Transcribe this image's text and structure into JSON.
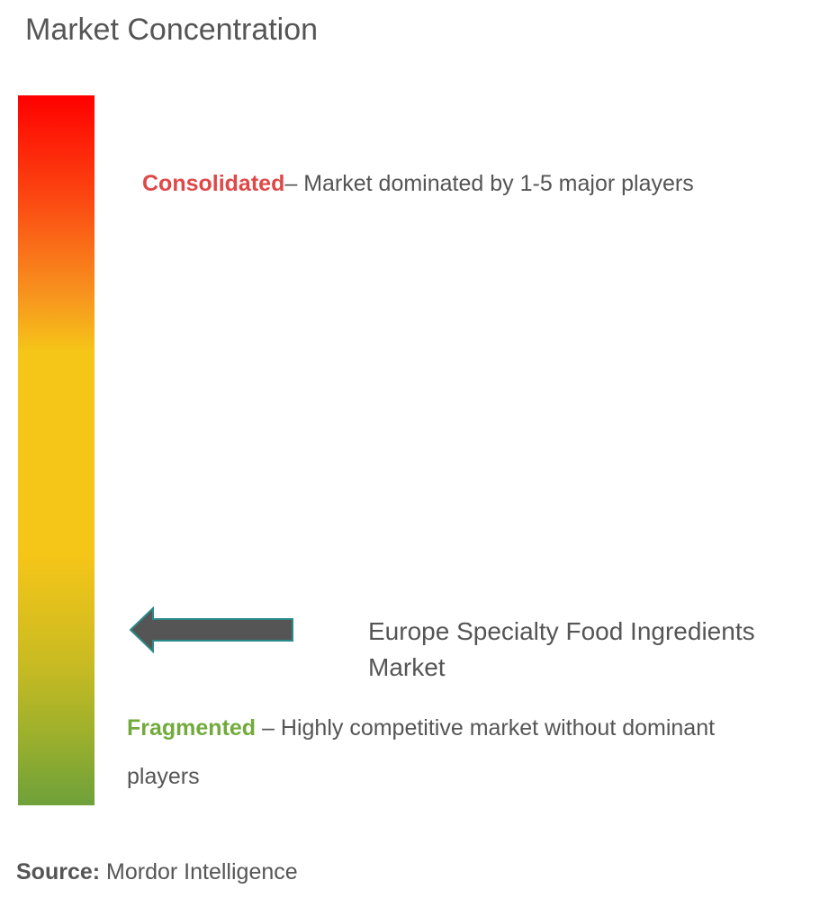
{
  "header": {
    "title": "Market Concentration"
  },
  "scale": {
    "consolidated": {
      "label": "Consolidated",
      "description": "– Market dominated by 1-5 major players"
    },
    "fragmented": {
      "label": "Fragmented",
      "description": "– Highly competitive market without dominant players"
    }
  },
  "market": {
    "name": "Europe Specialty Food Ingredients Market"
  },
  "source": {
    "label": "Source:",
    "text": "Mordor Intelligence"
  }
}
